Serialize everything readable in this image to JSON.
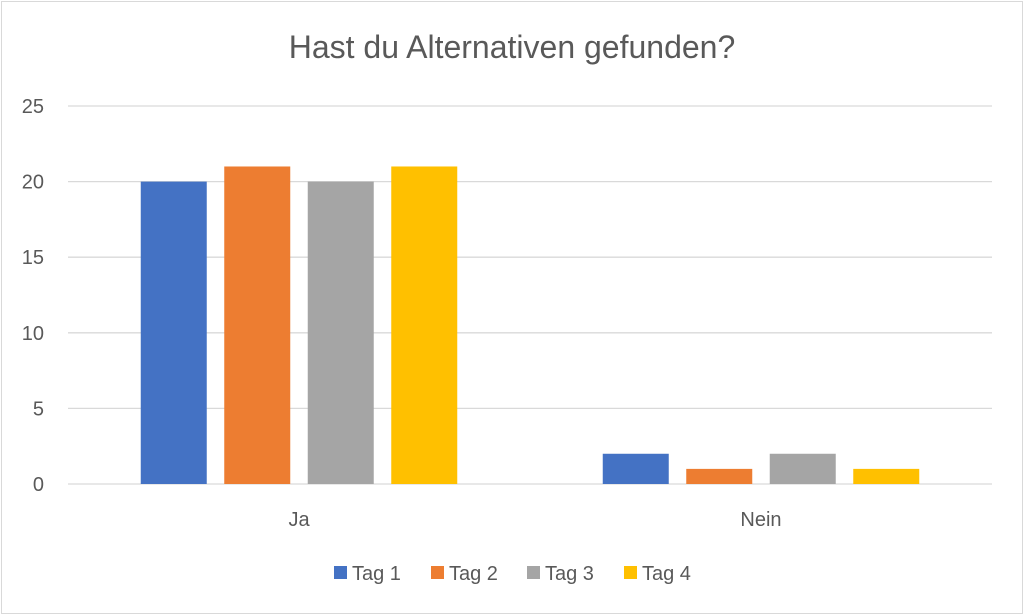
{
  "chart_data": {
    "type": "bar",
    "title": "Hast du Alternativen gefunden?",
    "xlabel": "",
    "ylabel": "",
    "categories": [
      "Ja",
      "Nein"
    ],
    "series": [
      {
        "name": "Tag 1",
        "values": [
          20,
          2
        ],
        "color": "#4472c4"
      },
      {
        "name": "Tag 2",
        "values": [
          21,
          1
        ],
        "color": "#ed7d31"
      },
      {
        "name": "Tag 3",
        "values": [
          20,
          2
        ],
        "color": "#a5a5a5"
      },
      {
        "name": "Tag 4",
        "values": [
          21,
          1
        ],
        "color": "#ffc000"
      }
    ],
    "ylim": [
      0,
      25
    ],
    "yticks": [
      0,
      5,
      10,
      15,
      20,
      25
    ],
    "grid": true,
    "legend": "bottom"
  }
}
